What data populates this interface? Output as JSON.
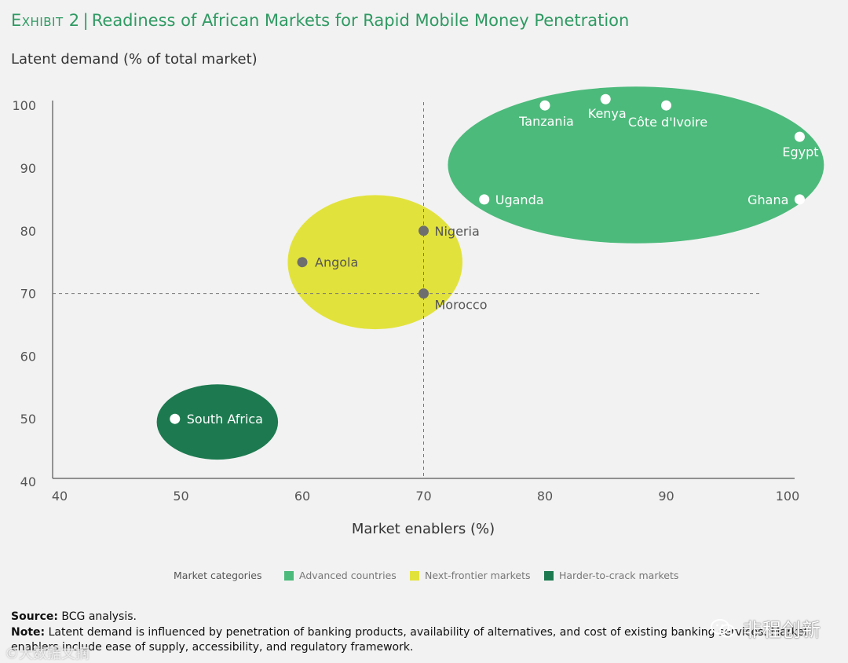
{
  "header": {
    "exhibit_label": "Exhibit 2",
    "title": "Readiness of African Markets for Rapid Mobile Money Penetration",
    "y_axis_title": "Latent demand (% of total market)"
  },
  "chart_data": {
    "type": "scatter",
    "title": "Readiness of African Markets for Rapid Mobile Money Penetration",
    "xlabel": "Market enablers (%)",
    "ylabel": "Latent demand (% of total market)",
    "xlim": [
      40,
      100
    ],
    "ylim": [
      40,
      100
    ],
    "x_ticks": [
      "40",
      "50",
      "60",
      "70",
      "80",
      "90",
      "100"
    ],
    "y_ticks": [
      "40",
      "50",
      "60",
      "70",
      "80",
      "90",
      "100"
    ],
    "reference_lines": {
      "x": 70,
      "y": 70
    },
    "legend_title": "Market categories",
    "categories": [
      {
        "name": "Advanced countries",
        "color": "#4cba7b"
      },
      {
        "name": "Next-frontier markets",
        "color": "#e2e23c"
      },
      {
        "name": "Harder-to-crack markets",
        "color": "#1d7a50"
      }
    ],
    "regions": [
      {
        "category": "Advanced countries",
        "cx": 87.5,
        "cy": 90.5,
        "rx": 15.5,
        "ry": 12.5
      },
      {
        "category": "Next-frontier markets",
        "cx": 66,
        "cy": 75,
        "rx": 7.2,
        "ry": 10.7
      },
      {
        "category": "Harder-to-crack markets",
        "cx": 53,
        "cy": 49.5,
        "rx": 5,
        "ry": 6
      }
    ],
    "points": [
      {
        "label": "Tanzania",
        "x": 80,
        "y": 100,
        "category": "Advanced countries"
      },
      {
        "label": "Kenya",
        "x": 85,
        "y": 101,
        "category": "Advanced countries"
      },
      {
        "label": "Côte d'Ivoire",
        "x": 90,
        "y": 100,
        "category": "Advanced countries"
      },
      {
        "label": "Egypt",
        "x": 101,
        "y": 95,
        "category": "Advanced countries"
      },
      {
        "label": "Uganda",
        "x": 75,
        "y": 85,
        "category": "Advanced countries"
      },
      {
        "label": "Ghana",
        "x": 101,
        "y": 85,
        "category": "Advanced countries"
      },
      {
        "label": "Nigeria",
        "x": 70,
        "y": 80,
        "category": "Next-frontier markets"
      },
      {
        "label": "Angola",
        "x": 60,
        "y": 75,
        "category": "Next-frontier markets"
      },
      {
        "label": "Morocco",
        "x": 70,
        "y": 70,
        "category": "Next-frontier markets"
      },
      {
        "label": "South Africa",
        "x": 49.5,
        "y": 50,
        "category": "Harder-to-crack markets"
      }
    ]
  },
  "footer": {
    "source_label": "Source:",
    "source_text": "BCG analysis.",
    "note_label": "Note:",
    "note_text": "Latent demand is influenced by penetration of banking products, availability of alternatives, and cost of existing banking services. Market enablers include ease of supply, accessibility, and regulatory framework."
  },
  "watermarks": {
    "right": "非程创新",
    "left": "©大数据文摘"
  }
}
